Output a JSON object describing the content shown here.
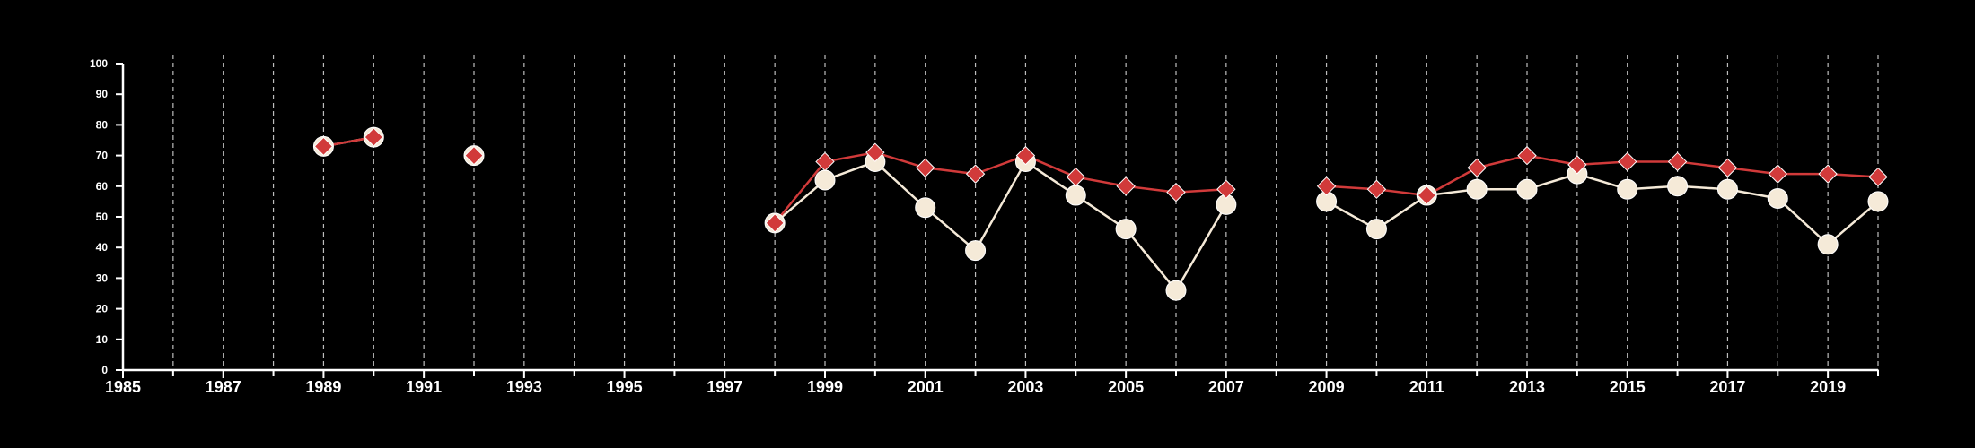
{
  "chart_data": {
    "type": "line",
    "title": "",
    "xlabel": "",
    "ylabel": "",
    "xlim": [
      1985,
      2020
    ],
    "ylim": [
      0,
      100
    ],
    "x_ticks": [
      "1985",
      "1987",
      "1989",
      "1991",
      "1993",
      "1995",
      "1997",
      "1999",
      "2001",
      "2003",
      "2005",
      "2007",
      "2009",
      "2011",
      "2013",
      "2015",
      "2017",
      "2019"
    ],
    "y_ticks": [
      "0",
      "10",
      "20",
      "30",
      "40",
      "50",
      "60",
      "70",
      "80",
      "90",
      "100"
    ],
    "grid": "vertical dashed lines at every year",
    "legend": "none",
    "x": [
      1989,
      1990,
      1992,
      1998,
      1999,
      2000,
      2001,
      2002,
      2003,
      2004,
      2005,
      2006,
      2007,
      2009,
      2010,
      2011,
      2012,
      2013,
      2014,
      2015,
      2016,
      2017,
      2018,
      2019,
      2020
    ],
    "series": [
      {
        "color": "#f5ead8",
        "marker": "circle",
        "values": [
          73,
          76,
          70,
          48,
          62,
          68,
          53,
          39,
          68,
          57,
          46,
          26,
          54,
          55,
          46,
          57,
          59,
          59,
          64,
          59,
          60,
          59,
          56,
          41,
          55
        ]
      },
      {
        "color": "#d13a3a",
        "marker": "diamond",
        "values": [
          73,
          76,
          70,
          48,
          68,
          71,
          66,
          64,
          70,
          63,
          60,
          58,
          59,
          60,
          59,
          57,
          66,
          70,
          67,
          68,
          68,
          66,
          64,
          64,
          63
        ]
      }
    ]
  }
}
